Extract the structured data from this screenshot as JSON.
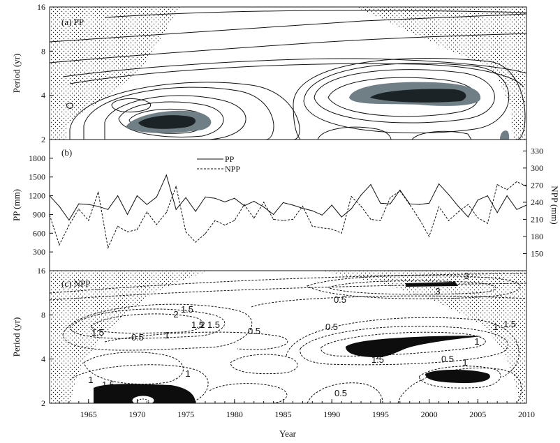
{
  "chart_data": [
    {
      "panel": "(a) PP",
      "type": "heatmap",
      "ylabel": "Period (yr)",
      "yscale": "log2",
      "ylim": [
        2,
        16
      ],
      "yticks": [
        "2",
        "4",
        "8",
        "16"
      ],
      "xlim": [
        1961,
        2010
      ],
      "significant_regions": [
        {
          "x": [
            1966,
            1978
          ],
          "period": [
            2.2,
            3.2
          ]
        },
        {
          "x": [
            1991,
            2006
          ],
          "period": [
            3.3,
            4.8
          ]
        },
        {
          "x": [
            2007,
            2008
          ],
          "period": [
            2.0,
            2.2
          ]
        }
      ]
    },
    {
      "panel": "(b)",
      "type": "line",
      "xlabel": "",
      "ylabel": "PP (mm)",
      "ylabel_right": "NPP (mm)",
      "ylim": [
        0,
        2100
      ],
      "ylim_right": [
        120,
        350
      ],
      "yticks": [
        300,
        600,
        900,
        1200,
        1500,
        1800
      ],
      "yticks_right": [
        150,
        180,
        210,
        240,
        270,
        300,
        330
      ],
      "x": [
        1961,
        1962,
        1963,
        1964,
        1965,
        1966,
        1967,
        1968,
        1969,
        1970,
        1971,
        1972,
        1973,
        1974,
        1975,
        1976,
        1977,
        1978,
        1979,
        1980,
        1981,
        1982,
        1983,
        1984,
        1985,
        1986,
        1987,
        1988,
        1989,
        1990,
        1991,
        1992,
        1993,
        1994,
        1995,
        1996,
        1997,
        1998,
        1999,
        2000,
        2001,
        2002,
        2003,
        2004,
        2005,
        2006,
        2007,
        2008,
        2009,
        2010
      ],
      "series": [
        {
          "name": "PP",
          "axis": "left",
          "style": "solid",
          "values": [
            1200,
            1030,
            810,
            1070,
            1060,
            1030,
            980,
            1200,
            900,
            1200,
            1060,
            1180,
            1530,
            980,
            1170,
            950,
            1180,
            1160,
            1100,
            1160,
            1040,
            1110,
            1020,
            900,
            1090,
            1050,
            1000,
            960,
            890,
            1050,
            860,
            990,
            1210,
            1380,
            1080,
            1070,
            1290,
            1070,
            1060,
            1080,
            1390,
            1220,
            1030,
            860,
            1130,
            1200,
            930,
            1200,
            980,
            1050
          ]
        },
        {
          "name": "NPP",
          "axis": "right",
          "style": "dashed",
          "values": [
            218,
            165,
            200,
            228,
            208,
            258,
            160,
            198,
            188,
            192,
            223,
            201,
            222,
            268,
            188,
            170,
            185,
            208,
            200,
            208,
            236,
            212,
            240,
            210,
            208,
            210,
            233,
            198,
            195,
            193,
            186,
            250,
            233,
            210,
            208,
            248,
            260,
            236,
            210,
            180,
            232,
            208,
            223,
            236,
            213,
            203,
            271,
            262,
            276,
            268
          ]
        }
      ]
    },
    {
      "panel": "(c) NPP",
      "type": "heatmap",
      "xlabel": "Year",
      "ylabel": "Period (yr)",
      "yscale": "log2",
      "ylim": [
        2,
        16
      ],
      "yticks": [
        "2",
        "4",
        "8",
        "16"
      ],
      "xlim": [
        1961,
        2010
      ],
      "xticks": [
        "1965",
        "1970",
        "1975",
        "1980",
        "1985",
        "1990",
        "1995",
        "2000",
        "2005",
        "2010"
      ],
      "contour_labels": [
        "3",
        "3",
        "0.5",
        "1.5",
        "2",
        "1.5",
        "0.5",
        "2",
        "1.5",
        "1.5",
        "0.5",
        "1",
        "0.5",
        "1.5",
        "1",
        "1",
        "2",
        "1.5",
        "0.5",
        "1",
        "1",
        "1.5",
        "0.5",
        "1"
      ],
      "significant_regions": [
        {
          "x": [
            1966,
            1976
          ],
          "period": [
            2.0,
            2.7
          ]
        },
        {
          "x": [
            1992,
            2005
          ],
          "period": [
            4.6,
            6.0
          ]
        },
        {
          "x": [
            1997,
            2003
          ],
          "period": [
            11.5,
            12.5
          ]
        },
        {
          "x": [
            2000,
            2004
          ],
          "period": [
            2.9,
            3.3
          ]
        }
      ]
    }
  ]
}
